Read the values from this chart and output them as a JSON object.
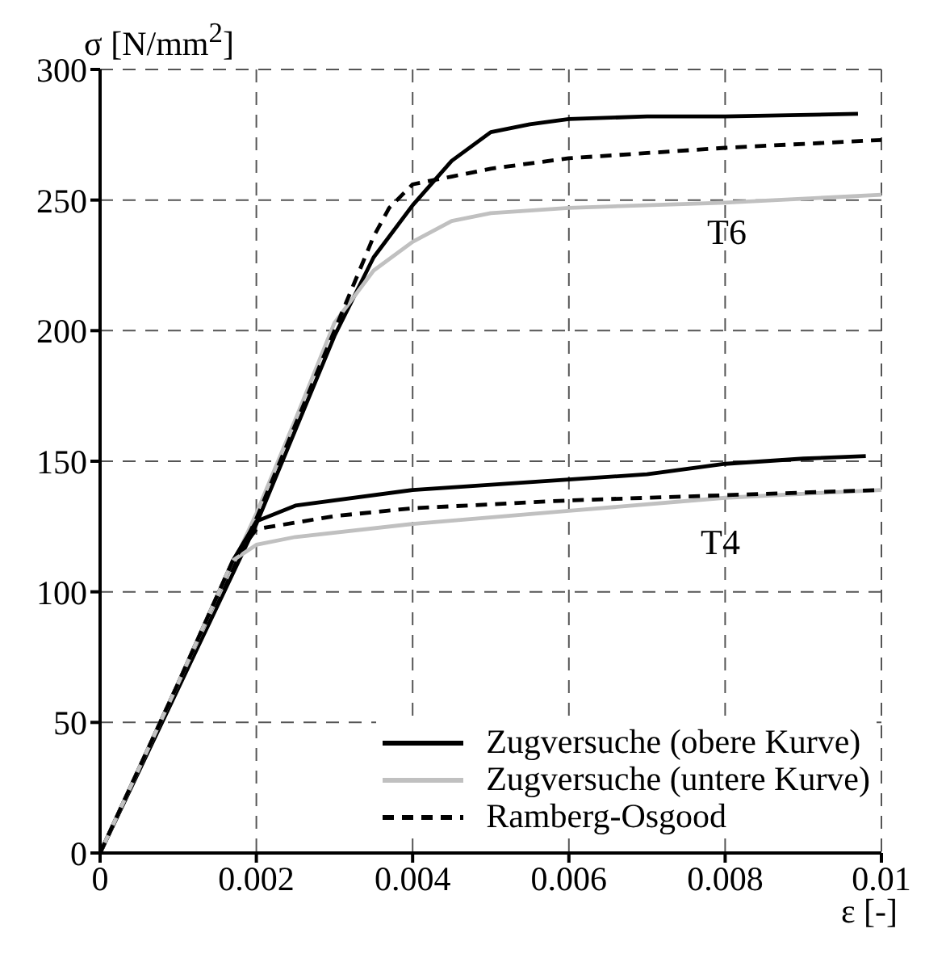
{
  "chart_data": {
    "type": "line",
    "xlabel": "ε [-]",
    "ylabel": "σ [N/mm$^{2}$]",
    "xlim": [
      0,
      0.01
    ],
    "xticks": [
      0,
      0.002,
      0.004,
      0.006,
      0.008,
      0.01
    ],
    "ylim": [
      0,
      300
    ],
    "yticks": [
      0,
      50,
      100,
      150,
      200,
      250,
      300
    ],
    "grid": true,
    "legend": "bottom right",
    "annotations": [
      "T6",
      "T4"
    ],
    "series": [
      {
        "name": "Zugversuche (obere Kurve)",
        "color": "#000000",
        "line_style": "solid",
        "x": [
          0,
          0.001,
          0.002,
          0.003,
          0.0035,
          0.004,
          0.0045,
          0.005,
          0.0055,
          0.006,
          0.007,
          0.008,
          0.0097
        ],
        "values": [
          0,
          63,
          126,
          198,
          228,
          248,
          265,
          276,
          279,
          281,
          282,
          282,
          283
        ]
      },
      {
        "name": "Zugversuche (untere Kurve)",
        "color": "#c0c0c0",
        "line_style": "solid",
        "x": [
          0,
          0.001,
          0.002,
          0.0025,
          0.003,
          0.0035,
          0.004,
          0.0045,
          0.005,
          0.006,
          0.008,
          0.01
        ],
        "values": [
          0,
          65,
          130,
          166,
          203,
          223,
          234,
          242,
          245,
          247,
          249,
          252
        ]
      },
      {
        "name": "Ramberg-Osgood",
        "color": "#000000",
        "line_style": "dashed",
        "x": [
          0,
          0.001,
          0.002,
          0.003,
          0.0035,
          0.0037,
          0.004,
          0.0045,
          0.005,
          0.006,
          0.008,
          0.01
        ],
        "values": [
          0,
          64,
          128,
          200,
          236,
          247,
          256,
          259,
          262,
          266,
          270,
          273
        ]
      },
      {
        "color": "#000000",
        "line_style": "solid",
        "x": [
          0,
          0.001,
          0.0017,
          0.002,
          0.0025,
          0.004,
          0.006,
          0.007,
          0.008,
          0.009,
          0.0098
        ],
        "values": [
          0,
          65,
          112,
          127,
          133,
          139,
          143,
          145,
          149,
          151,
          152
        ]
      },
      {
        "color": "#c0c0c0",
        "line_style": "solid",
        "x": [
          0,
          0.001,
          0.0017,
          0.002,
          0.0025,
          0.004,
          0.006,
          0.008,
          0.0093,
          0.01
        ],
        "values": [
          0,
          65,
          112,
          118,
          121,
          126,
          131,
          136,
          138,
          139
        ]
      },
      {
        "color": "#000000",
        "line_style": "dashed",
        "x": [
          0,
          0.001,
          0.0017,
          0.002,
          0.003,
          0.004,
          0.006,
          0.008,
          0.01
        ],
        "values": [
          0,
          65,
          112,
          124,
          129,
          132,
          135,
          137,
          139
        ]
      }
    ]
  }
}
